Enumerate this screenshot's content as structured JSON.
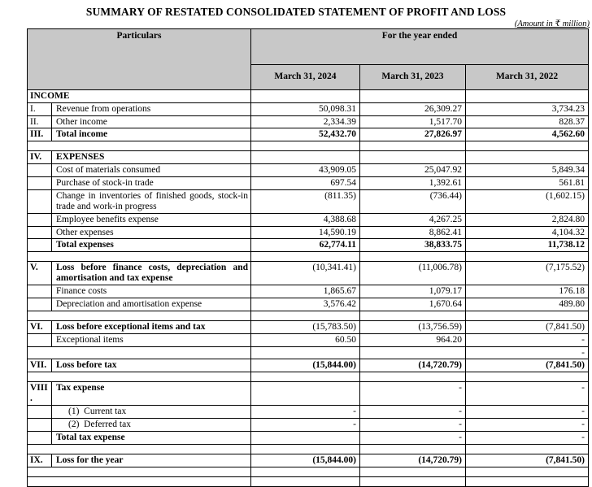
{
  "title": "SUMMARY OF RESTATED CONSOLIDATED STATEMENT OF PROFIT AND LOSS",
  "note": "(Amount in ₹ million)",
  "colors": {
    "header_bg": "#C8C8C8",
    "border": "#000000"
  },
  "table": {
    "header": {
      "particulars": "Particulars",
      "year_group": "For the year ended",
      "years": [
        "March 31, 2024",
        "March 31, 2023",
        "March 31, 2022"
      ]
    },
    "rows": [
      {
        "merged": true,
        "label": "INCOME",
        "label_bold": true,
        "values": [
          "",
          "",
          ""
        ]
      },
      {
        "num": "I.",
        "label": "Revenue from operations",
        "values": [
          "50,098.31",
          "26,309.27",
          "3,734.23"
        ]
      },
      {
        "num": "II.",
        "label": "Other income",
        "values": [
          "2,334.39",
          "1,517.70",
          "828.37"
        ]
      },
      {
        "num": "III.",
        "label": "Total income",
        "label_bold": true,
        "values_bold": true,
        "values": [
          "52,432.70",
          "27,826.97",
          "4,562.60"
        ]
      },
      {
        "empty": true,
        "merged": true,
        "label": "",
        "values": [
          "",
          "",
          ""
        ]
      },
      {
        "num": "IV.",
        "label": "EXPENSES",
        "label_bold": true,
        "values": [
          "",
          "",
          ""
        ]
      },
      {
        "num": "",
        "label": "Cost of materials consumed",
        "values": [
          "43,909.05",
          "25,047.92",
          "5,849.34"
        ]
      },
      {
        "num": "",
        "label": "Purchase of stock-in trade",
        "values": [
          "697.54",
          "1,392.61",
          "561.81"
        ]
      },
      {
        "num": "",
        "label": "Change in inventories of finished goods, stock-in trade and work-in progress",
        "wrap": true,
        "values": [
          "(811.35)",
          "(736.44)",
          "(1,602.15)"
        ]
      },
      {
        "num": "",
        "label": "Employee benefits expense",
        "values": [
          "4,388.68",
          "4,267.25",
          "2,824.80"
        ]
      },
      {
        "num": "",
        "label": "Other expenses",
        "values": [
          "14,590.19",
          "8,862.41",
          "4,104.32"
        ]
      },
      {
        "num": "",
        "label": "Total expenses",
        "label_bold": true,
        "values_bold": true,
        "values": [
          "62,774.11",
          "38,833.75",
          "11,738.12"
        ]
      },
      {
        "empty": true,
        "merged": true,
        "label": "",
        "values": [
          "",
          "",
          ""
        ]
      },
      {
        "num": "V.",
        "label": "Loss before finance costs, depreciation and amortisation and tax expense",
        "label_bold": true,
        "wrap": true,
        "values": [
          "(10,341.41)",
          "(11,006.78)",
          "(7,175.52)"
        ]
      },
      {
        "num": "",
        "label": "Finance costs",
        "values": [
          "1,865.67",
          "1,079.17",
          "176.18"
        ]
      },
      {
        "num": "",
        "label": "Depreciation and amortisation expense",
        "values": [
          "3,576.42",
          "1,670.64",
          "489.80"
        ]
      },
      {
        "empty": true,
        "merged": true,
        "label": "",
        "values": [
          "",
          "",
          ""
        ]
      },
      {
        "num": "VI.",
        "label": "Loss before exceptional items and tax",
        "label_bold": true,
        "values": [
          "(15,783.50)",
          "(13,756.59)",
          "(7,841.50)"
        ]
      },
      {
        "num": "",
        "label": "Exceptional items",
        "values": [
          "60.50",
          "964.20",
          "-"
        ]
      },
      {
        "empty": true,
        "merged": true,
        "label": "",
        "values": [
          "",
          "",
          "-"
        ]
      },
      {
        "num": "VII.",
        "label": "Loss before tax",
        "label_bold": true,
        "values_bold": true,
        "values": [
          "(15,844.00)",
          "(14,720.79)",
          "(7,841.50)"
        ]
      },
      {
        "empty": true,
        "merged": true,
        "label": "",
        "values": [
          "",
          "",
          ""
        ]
      },
      {
        "num": "VIII.",
        "label": "Tax expense",
        "label_bold": true,
        "values": [
          "",
          "-",
          "-"
        ]
      },
      {
        "num": "",
        "label": "(1)  Current tax",
        "indent": true,
        "values": [
          "-",
          "-",
          "-"
        ]
      },
      {
        "num": "",
        "label": "(2)  Deferred tax",
        "indent": true,
        "values": [
          "-",
          "-",
          "-"
        ]
      },
      {
        "num": "",
        "label": "Total tax expense",
        "label_bold": true,
        "values": [
          "",
          "-",
          "-"
        ]
      },
      {
        "empty": true,
        "merged": true,
        "label": "",
        "values": [
          "",
          "",
          ""
        ]
      },
      {
        "num": "IX.",
        "label": "Loss for the year",
        "label_bold": true,
        "values_bold": true,
        "values": [
          "(15,844.00)",
          "(14,720.79)",
          "(7,841.50)"
        ]
      },
      {
        "empty": true,
        "merged": true,
        "label": "",
        "values": [
          "",
          "",
          ""
        ]
      },
      {
        "empty": true,
        "merged": true,
        "label": "",
        "values": [
          "",
          "",
          ""
        ]
      }
    ]
  }
}
